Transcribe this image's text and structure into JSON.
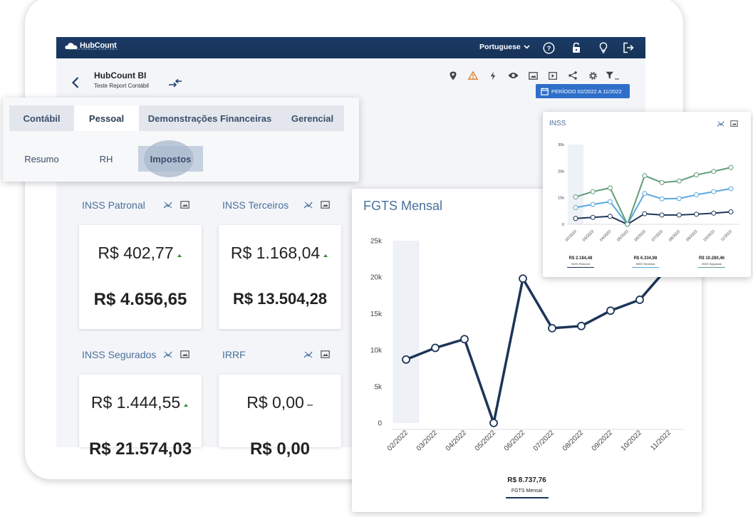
{
  "topbar": {
    "logo": "HubCount",
    "logo_sub": "INTELIGÊNCIA CONTÁBIL",
    "language": "Portuguese",
    "icons": [
      "help-icon",
      "unlock-icon",
      "lightbulb-icon",
      "logout-icon"
    ]
  },
  "header": {
    "title": "HubCount BI",
    "subtitle": "Teste Report Contábil",
    "toolbar_icons": [
      "location-pin-icon",
      "warning-icon",
      "bolt-icon",
      "eye-icon",
      "frame-icon",
      "play-icon",
      "share-icon",
      "gear-icon",
      "filter-icon"
    ],
    "period": "PERÍODO 02/2022 A 11/2022"
  },
  "tabs": {
    "main": [
      {
        "label": "Contábil",
        "active": false
      },
      {
        "label": "Pessoal",
        "active": true
      },
      {
        "label": "Demonstrações Financeiras",
        "active": false
      },
      {
        "label": "Gerencial",
        "active": false
      }
    ],
    "sub": [
      {
        "label": "Resumo",
        "active": false
      },
      {
        "label": "RH",
        "active": false
      },
      {
        "label": "Impostos",
        "active": true
      }
    ]
  },
  "kpis": [
    {
      "label": "INSS Patronal",
      "value": "R$ 402,77",
      "total": "R$ 4.656,65",
      "trend": "up"
    },
    {
      "label": "INSS Terceiros",
      "value": "R$ 1.168,04",
      "total": "R$ 13.504,28",
      "trend": "up"
    },
    {
      "label": "INSS Segurados",
      "value": "R$ 1.444,55",
      "total": "R$ 21.574,03",
      "trend": "up"
    },
    {
      "label": "IRRF",
      "value": "R$ 0,00",
      "total": "R$ 0,00",
      "trend": "flat"
    }
  ],
  "colors": {
    "topbar": "#1b3b66",
    "accent": "#2f6fc9",
    "fgts_line": "#1c3558",
    "inss_patronal": "#1c3558",
    "inss_terceiros": "#5aa8dc",
    "inss_segurado": "#5f9c78"
  },
  "chart_data": [
    {
      "type": "line",
      "title": "FGTS Mensal",
      "categories": [
        "02/2022",
        "03/2022",
        "04/2022",
        "05/2022",
        "06/2022",
        "07/2022",
        "08/2022",
        "09/2022",
        "10/2022",
        "11/2022"
      ],
      "series": [
        {
          "name": "FGTS Mensal",
          "values": [
            8700,
            10300,
            11500,
            0,
            19800,
            13000,
            13300,
            15400,
            16900,
            21500
          ]
        }
      ],
      "y_ticks": [
        "0",
        "5k",
        "10k",
        "15k",
        "20k",
        "25k"
      ],
      "ylim": [
        0,
        25000
      ],
      "total": "R$ 8.737,76",
      "legend_label": "FGTS Mensal",
      "highlight_category": "02/2022"
    },
    {
      "type": "line",
      "title": "INSS",
      "categories": [
        "02/2022",
        "03/2022",
        "04/2022",
        "05/2022",
        "06/2022",
        "07/2022",
        "08/2022",
        "09/2022",
        "10/2022",
        "11/2022"
      ],
      "series": [
        {
          "name": "INSS Patronal",
          "values": [
            2200,
            2600,
            3000,
            0,
            4000,
            3500,
            3500,
            3800,
            4200,
            4700
          ],
          "total": "R$ 2.184,48",
          "label": "INSS Patronal"
        },
        {
          "name": "INSS Terceiros",
          "values": [
            6300,
            7500,
            8500,
            0,
            11600,
            9600,
            9700,
            11100,
            12300,
            13400
          ],
          "total": "R$ 6.334,98",
          "label": "INSS Terceiros"
        },
        {
          "name": "INSS Segurado",
          "values": [
            10300,
            12300,
            13700,
            0,
            18300,
            15700,
            16300,
            18600,
            19900,
            21400
          ],
          "total": "R$ 10.280,46",
          "label": "INSS Segurado"
        }
      ],
      "y_ticks": [
        "0",
        "10k",
        "20k",
        "30k"
      ],
      "ylim": [
        0,
        30000
      ],
      "highlight_category": "02/2022"
    }
  ]
}
